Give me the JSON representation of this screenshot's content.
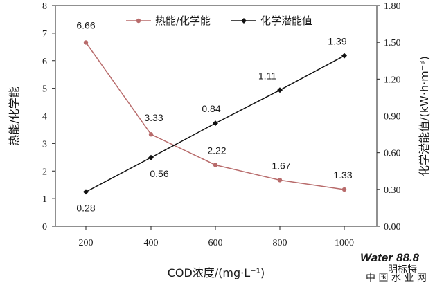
{
  "chart_data": {
    "type": "line",
    "categories": [
      "200",
      "400",
      "600",
      "800",
      "1000"
    ],
    "x": [
      200,
      400,
      600,
      800,
      1000
    ],
    "xlabel": "COD浓度/(mg·L⁻¹)",
    "ylabel_left": "热能/化学能",
    "ylabel_right": "化学潜能值/(kW·h·m⁻³)",
    "ylim_left": [
      0,
      8
    ],
    "ylim_right": [
      0,
      1.8
    ],
    "yticks_left": [
      "0",
      "1",
      "2",
      "3",
      "4",
      "5",
      "6",
      "7",
      "8"
    ],
    "yticks_right": [
      "0.00",
      "0.30",
      "0.60",
      "0.90",
      "1.20",
      "1.50",
      "1.80"
    ],
    "grid": false,
    "legend_position": "top-center",
    "series": [
      {
        "name": "热能/化学能",
        "axis": "left",
        "color": "#b86b6b",
        "marker": "circle",
        "values": [
          6.66,
          3.33,
          2.22,
          1.67,
          1.33
        ],
        "labels": [
          "6.66",
          "3.33",
          "2.22",
          "1.67",
          "1.33"
        ]
      },
      {
        "name": "化学潜能值",
        "axis": "right",
        "color": "#111111",
        "marker": "diamond",
        "values": [
          0.28,
          0.56,
          0.84,
          1.11,
          1.39
        ],
        "labels": [
          "0.28",
          "0.56",
          "0.84",
          "1.11",
          "1.39"
        ]
      }
    ]
  },
  "watermark": {
    "brand": "Water",
    "brand_suffix": "88.8",
    "site": "中 国 水 业 网",
    "small_text": "明标特"
  }
}
